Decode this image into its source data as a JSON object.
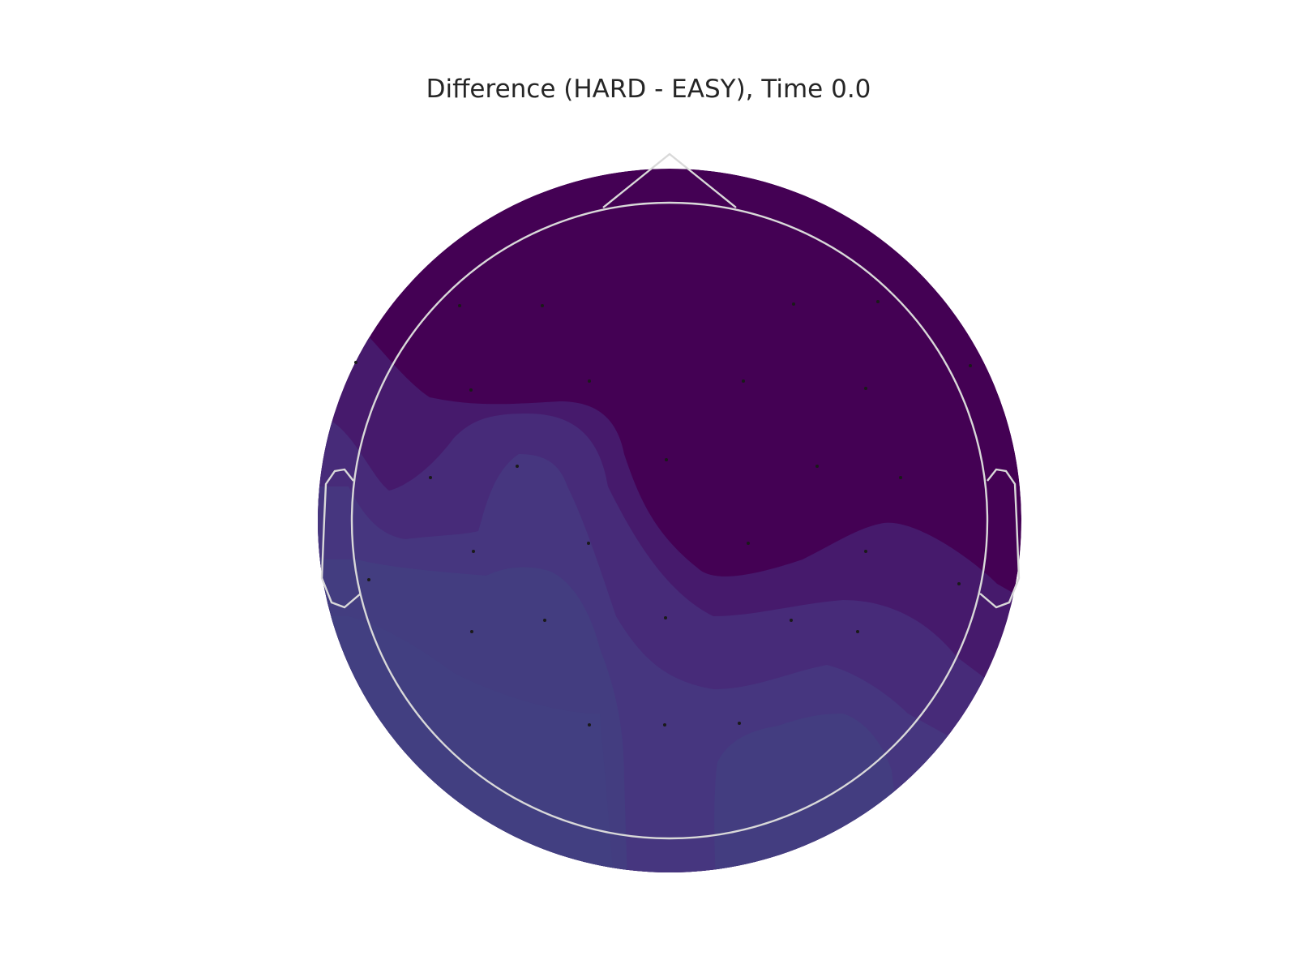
{
  "chart_data": {
    "type": "heatmap",
    "title": "Difference (HARD - EASY), Time 0.0",
    "colormap": [
      "#440154",
      "#461a6c",
      "#472b79",
      "#46367f",
      "#433d80",
      "#423f81"
    ],
    "grid": false,
    "sensor_color": "#1a1a1a",
    "outline_color": "#d9d9d9"
  }
}
